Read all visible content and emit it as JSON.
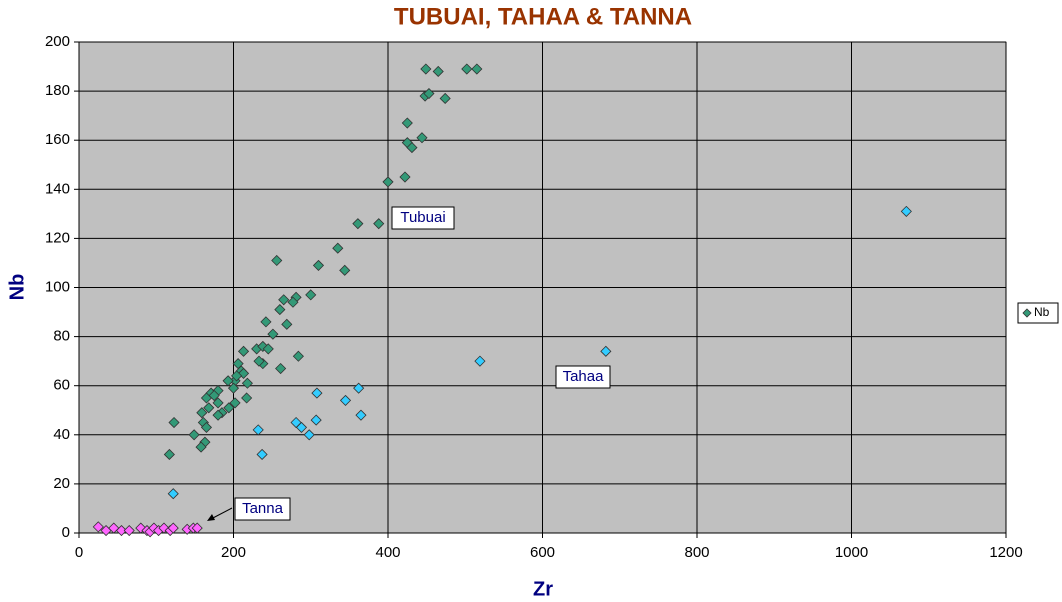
{
  "chart_data": {
    "type": "scatter",
    "title": "TUBUAI, TAHAA & TANNA",
    "x_label": "Zr",
    "y_label": "Nb",
    "xlim": [
      0,
      1200
    ],
    "xticks": [
      0,
      200,
      400,
      600,
      800,
      1000,
      1200
    ],
    "ylim": [
      0,
      200
    ],
    "yticks": [
      0,
      20,
      40,
      60,
      80,
      100,
      120,
      140,
      160,
      180,
      200
    ],
    "grid": true,
    "legend": "right",
    "series": [
      {
        "name": "Nb",
        "color": "#339977",
        "x": [
          449,
          465,
          502,
          515,
          448,
          453,
          474,
          425,
          444,
          425,
          431,
          422,
          400,
          388,
          361,
          335,
          344,
          310,
          256,
          300,
          281,
          277,
          265,
          269,
          260,
          251,
          242,
          284,
          261,
          213,
          230,
          238,
          245,
          238,
          233,
          206,
          210,
          213,
          218,
          202,
          204,
          193,
          200,
          217,
          202,
          194,
          185,
          180,
          171,
          165,
          168,
          180,
          175,
          180,
          159,
          161,
          165,
          149,
          163,
          158,
          123,
          117
        ],
        "y": [
          189,
          188,
          189,
          189,
          178,
          179,
          177,
          167,
          161,
          159,
          157,
          145,
          143,
          126,
          126,
          116,
          107,
          109,
          111,
          97,
          96,
          94,
          95,
          85,
          91,
          81,
          86,
          72,
          67,
          74,
          75,
          76,
          75,
          69,
          70,
          69,
          66,
          65,
          61,
          62,
          64,
          62,
          59,
          55,
          53,
          51,
          49,
          48,
          57,
          55,
          51,
          58,
          56,
          53,
          49,
          45,
          43,
          40,
          37,
          35,
          45,
          32
        ]
      },
      {
        "color": "#33ccff",
        "x": [
          1071,
          682,
          519,
          362,
          308,
          345,
          365,
          307,
          281,
          288,
          298,
          232,
          237,
          122
        ],
        "y": [
          131,
          74,
          70,
          59,
          57,
          54,
          48,
          46,
          45,
          43,
          40,
          42,
          32,
          16
        ]
      },
      {
        "color": "#ff66ff",
        "x": [
          25,
          35,
          45,
          55,
          65,
          80,
          88,
          92,
          97,
          103,
          110,
          118,
          122,
          140,
          148,
          153
        ],
        "y": [
          2.5,
          1,
          2,
          1,
          1,
          2,
          1,
          0.5,
          2,
          1,
          2,
          1,
          2,
          1.5,
          2,
          2
        ]
      }
    ],
    "annotations": [
      "Tubuai",
      "Tahaa",
      "Tanna"
    ]
  }
}
